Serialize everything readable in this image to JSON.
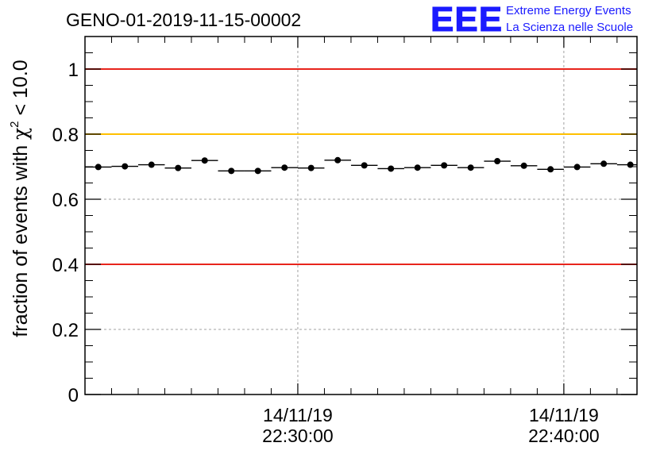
{
  "chart_data": {
    "type": "scatter",
    "title": "GENO-01-2019-11-15-00002",
    "ylabel_text": "fraction of events with ",
    "ylabel_chi": "χ",
    "ylabel_sup": "2",
    "ylabel_tail": " < 10.0",
    "ylim": [
      0,
      1.1
    ],
    "yticks": [
      0,
      0.2,
      0.4,
      0.6,
      0.8,
      1
    ],
    "ytick_labels": [
      "0",
      "0.2",
      "0.4",
      "0.6",
      "0.8",
      "1"
    ],
    "xlim": [
      -16,
      25.5
    ],
    "xticks": [
      0,
      20
    ],
    "xtick_labels": [
      {
        "date": "14/11/19",
        "time": "22:30:00"
      },
      {
        "date": "14/11/19",
        "time": "22:40:00"
      }
    ],
    "grid": true,
    "reference_lines": [
      {
        "y": 1.0,
        "color": "#e8241c"
      },
      {
        "y": 0.8,
        "color": "#ffc000"
      },
      {
        "y": 0.4,
        "color": "#e8241c"
      }
    ],
    "bin_width": 2,
    "x": [
      -15,
      -13,
      -11,
      -9,
      -7,
      -5,
      -3,
      -1,
      1,
      3,
      5,
      7,
      9,
      11,
      13,
      15,
      17,
      19,
      21,
      23,
      25
    ],
    "y": [
      0.699,
      0.701,
      0.706,
      0.696,
      0.719,
      0.687,
      0.687,
      0.697,
      0.696,
      0.72,
      0.704,
      0.694,
      0.697,
      0.704,
      0.697,
      0.717,
      0.703,
      0.692,
      0.699,
      0.709,
      0.706
    ],
    "marker_color": "#000000"
  },
  "logo": {
    "mark": "EEE",
    "line1": "Extreme Energy Events",
    "line2": "La Scienza nelle Scuole",
    "color": "#1a1aff"
  }
}
